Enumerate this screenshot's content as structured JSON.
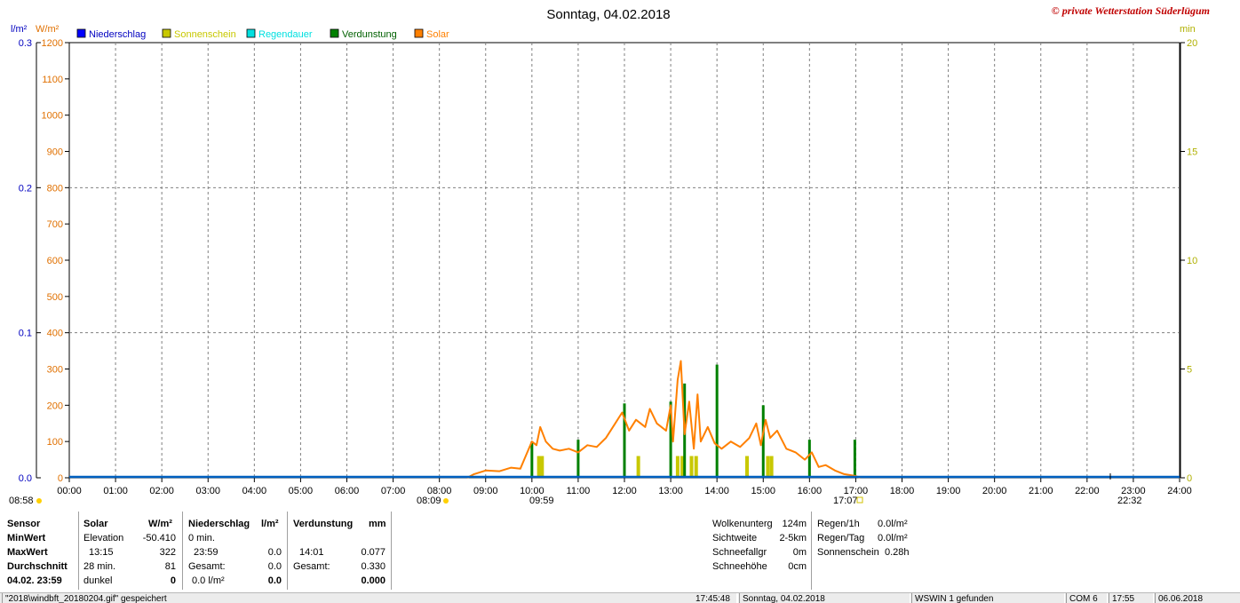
{
  "title": "Sonntag, 04.02.2018",
  "copyright": "© private Wetterstation Süderlügum",
  "units": {
    "left_rain": "l/m²",
    "left_solar": "W/m²",
    "right_min": "min"
  },
  "legend": [
    {
      "label": "Niederschlag",
      "color": "#0000ff"
    },
    {
      "label": "Sonnenschein",
      "color": "#c8c800"
    },
    {
      "label": "Regendauer",
      "color": "#00e0e0"
    },
    {
      "label": "Verdunstung",
      "color": "#008000"
    },
    {
      "label": "Solar",
      "color": "#ff8000"
    }
  ],
  "time_markers": {
    "left_time": "08:58",
    "sunrise": "08:09",
    "solar_noon": "09:59",
    "sunset": "17:07",
    "moon": "22:32"
  },
  "chart_data": {
    "type": "line",
    "title": "Sonntag, 04.02.2018",
    "x_ticks": [
      "00:00",
      "01:00",
      "02:00",
      "03:00",
      "04:00",
      "05:00",
      "06:00",
      "07:00",
      "08:00",
      "09:00",
      "10:00",
      "11:00",
      "12:00",
      "13:00",
      "14:00",
      "15:00",
      "16:00",
      "17:00",
      "18:00",
      "19:00",
      "20:00",
      "21:00",
      "22:00",
      "23:00",
      "24:00"
    ],
    "xlim_hours": [
      0,
      24
    ],
    "y_solar": {
      "label": "W/m²",
      "ylim": [
        0,
        1200
      ],
      "ticks": [
        "0",
        "100",
        "200",
        "300",
        "400",
        "500",
        "600",
        "700",
        "800",
        "900",
        "1000",
        "1100",
        "1200"
      ]
    },
    "y_rain": {
      "label": "l/m²",
      "ylim": [
        0,
        0.3
      ],
      "ticks": [
        "0.0",
        "0.1",
        "0.2",
        "0.3"
      ]
    },
    "y_minutes": {
      "label": "min",
      "ylim": [
        0,
        20
      ],
      "ticks": [
        "0",
        "5",
        "10",
        "15",
        "20"
      ]
    },
    "series": [
      {
        "name": "Solar",
        "color": "#ff8000",
        "points": [
          [
            8.6,
            0
          ],
          [
            8.75,
            10
          ],
          [
            9.0,
            20
          ],
          [
            9.3,
            18
          ],
          [
            9.55,
            28
          ],
          [
            9.75,
            25
          ],
          [
            9.9,
            70
          ],
          [
            10.0,
            100
          ],
          [
            10.1,
            90
          ],
          [
            10.18,
            140
          ],
          [
            10.3,
            100
          ],
          [
            10.45,
            80
          ],
          [
            10.6,
            75
          ],
          [
            10.8,
            80
          ],
          [
            11.0,
            70
          ],
          [
            11.2,
            90
          ],
          [
            11.4,
            85
          ],
          [
            11.6,
            110
          ],
          [
            11.8,
            150
          ],
          [
            11.95,
            180
          ],
          [
            12.1,
            130
          ],
          [
            12.25,
            160
          ],
          [
            12.45,
            140
          ],
          [
            12.55,
            190
          ],
          [
            12.7,
            150
          ],
          [
            12.9,
            130
          ],
          [
            13.0,
            200
          ],
          [
            13.05,
            100
          ],
          [
            13.15,
            270
          ],
          [
            13.22,
            322
          ],
          [
            13.3,
            120
          ],
          [
            13.4,
            210
          ],
          [
            13.5,
            80
          ],
          [
            13.58,
            230
          ],
          [
            13.65,
            100
          ],
          [
            13.8,
            140
          ],
          [
            13.95,
            95
          ],
          [
            14.1,
            80
          ],
          [
            14.3,
            100
          ],
          [
            14.5,
            85
          ],
          [
            14.7,
            110
          ],
          [
            14.85,
            150
          ],
          [
            14.95,
            90
          ],
          [
            15.05,
            160
          ],
          [
            15.15,
            110
          ],
          [
            15.3,
            130
          ],
          [
            15.5,
            80
          ],
          [
            15.7,
            70
          ],
          [
            15.9,
            50
          ],
          [
            16.05,
            70
          ],
          [
            16.2,
            30
          ],
          [
            16.35,
            35
          ],
          [
            16.55,
            20
          ],
          [
            16.75,
            10
          ],
          [
            17.0,
            5
          ],
          [
            17.1,
            0
          ]
        ]
      },
      {
        "name": "Sonnenschein",
        "color": "#c8c800",
        "unit": "min",
        "bars": [
          [
            10.15,
            1
          ],
          [
            10.22,
            1
          ],
          [
            12.3,
            1
          ],
          [
            13.15,
            1
          ],
          [
            13.25,
            1
          ],
          [
            13.45,
            1
          ],
          [
            13.55,
            1
          ],
          [
            14.65,
            1
          ],
          [
            15.1,
            1
          ],
          [
            15.18,
            1
          ]
        ]
      },
      {
        "name": "Verdunstung",
        "color": "#008000",
        "bars": [
          [
            10.0,
            100
          ],
          [
            11.0,
            105
          ],
          [
            12.0,
            205
          ],
          [
            13.0,
            210
          ],
          [
            13.3,
            260
          ],
          [
            14.0,
            312
          ],
          [
            15.0,
            200
          ],
          [
            16.0,
            105
          ],
          [
            16.98,
            105
          ]
        ]
      },
      {
        "name": "Niederschlag",
        "color": "#0000ff",
        "unit": "l/m²",
        "values": [
          0.0
        ]
      }
    ]
  },
  "stats": {
    "headers": {
      "sensor": "Sensor",
      "solar": "Solar",
      "solar_unit": "W/m²",
      "rain": "Niederschlag",
      "rain_unit": "l/m²",
      "evap": "Verdunstung",
      "evap_unit": "mm"
    },
    "rows": {
      "min": {
        "label": "MinWert",
        "solar_sub": "Elevation",
        "solar_val": "-50.410",
        "rain_sub": "0 min.",
        "rain_val": "",
        "evap_sub": "",
        "evap_val": ""
      },
      "max": {
        "label": "MaxWert",
        "solar_sub": "13:15",
        "solar_val": "322",
        "rain_sub": "23:59",
        "rain_val": "0.0",
        "evap_sub": "14:01",
        "evap_val": "0.077"
      },
      "avg": {
        "label": "Durchschnitt",
        "solar_sub": "28 min.",
        "solar_val": "81",
        "rain_sub": "Gesamt:",
        "rain_val": "0.0",
        "evap_sub": "Gesamt:",
        "evap_val": "0.330"
      },
      "date": {
        "label": "04.02. 23:59",
        "solar_sub": "dunkel",
        "solar_val": "0",
        "rain_sub": "0.0 l/m²",
        "rain_val": "0.0",
        "evap_sub": "",
        "evap_val": "0.000"
      }
    },
    "weather": [
      {
        "label": "Wolkenunterg",
        "value": "124m"
      },
      {
        "label": "Sichtweite",
        "value": "2-5km"
      },
      {
        "label": "Schneefallgr",
        "value": "0m"
      },
      {
        "label": "Schneehöhe",
        "value": "0cm"
      }
    ],
    "rain_info": [
      {
        "label": "Regen/1h",
        "value": "0.0l/m²"
      },
      {
        "label": "Regen/Tag",
        "value": "0.0l/m²"
      },
      {
        "label": "Sonnenschein",
        "value": "0.28h"
      }
    ]
  },
  "statusbar": {
    "file": "\"2018\\windbft_20180204.gif\" gespeichert",
    "time": "17:45:48",
    "date": "Sonntag, 04.02.2018",
    "device": "WSWIN 1 gefunden",
    "port": "COM 6",
    "clock": "17:55",
    "today": "06.06.2018"
  }
}
